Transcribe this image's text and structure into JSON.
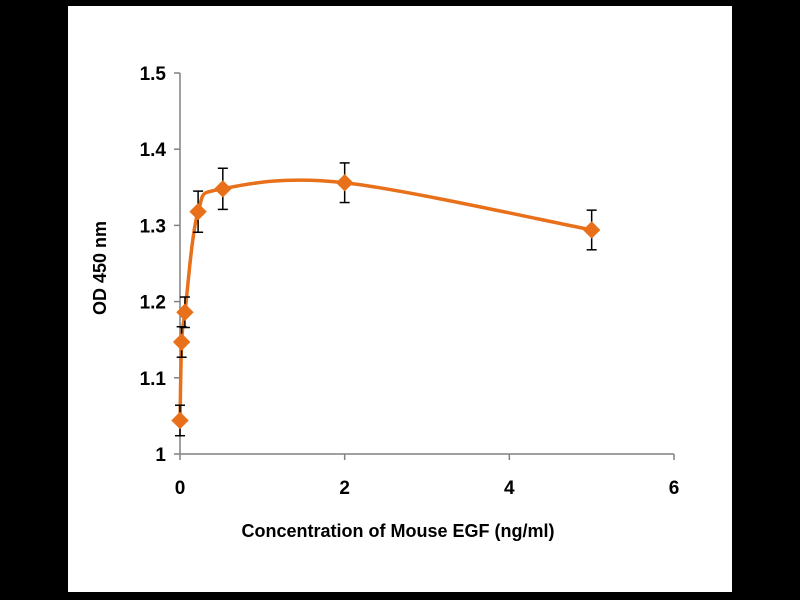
{
  "chart_data": {
    "type": "line",
    "title": "",
    "xlabel": "Concentration of Mouse EGF (ng/ml)",
    "ylabel": "OD 450 nm",
    "xlim": [
      0,
      6
    ],
    "ylim": [
      1,
      1.5
    ],
    "xticks": [
      "0",
      "2",
      "4",
      "6"
    ],
    "yticks": [
      "1",
      "1.1",
      "1.2",
      "1.3",
      "1.4",
      "1.5"
    ],
    "series": [
      {
        "name": "Mouse EGF",
        "color": "#E8701A",
        "marker": "diamond",
        "x": [
          0,
          0.02,
          0.06,
          0.22,
          0.52,
          2,
          5
        ],
        "y": [
          1.044,
          1.147,
          1.186,
          1.318,
          1.348,
          1.356,
          1.294
        ],
        "error": [
          0.02,
          0.02,
          0.02,
          0.027,
          0.027,
          0.026,
          0.026
        ]
      }
    ]
  },
  "colors": {
    "background": "#000000",
    "panel": "#ffffff",
    "series": "#E8701A",
    "axis": "#808080"
  }
}
